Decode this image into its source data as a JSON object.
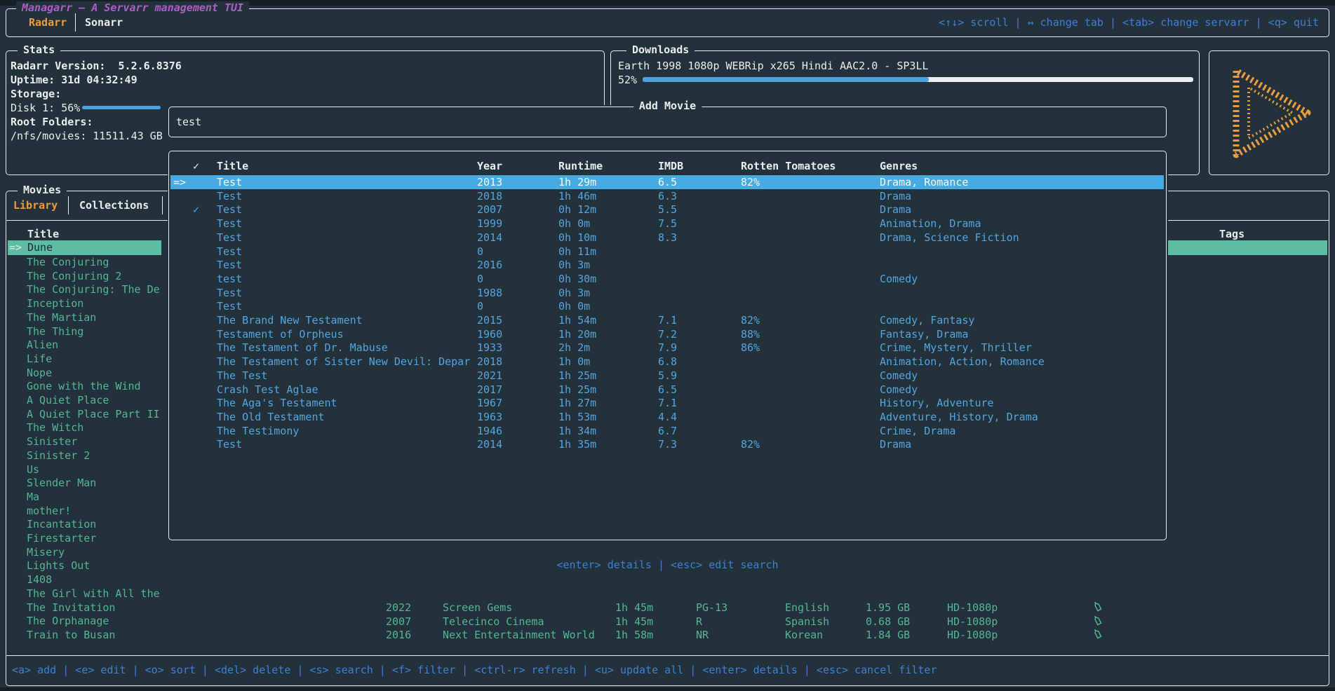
{
  "colors": {
    "background": "#22313a",
    "border": "#e9edf0",
    "text_white": "#e9edef",
    "title_purple": "#ab5fc6",
    "accent_orange": "#ed9b40",
    "help_blue": "#3f7fd6",
    "table_blue": "#55a5df",
    "selected_row_blue": "#47aae1",
    "list_teal": "#55b598",
    "selected_row_teal": "#5cbda3",
    "progress_blue": "#4aa3df"
  },
  "top_bar": {
    "title": "Managarr – A Servarr management TUI",
    "tabs": [
      {
        "label": "Radarr",
        "active": true
      },
      {
        "label": "Sonarr",
        "active": false
      }
    ],
    "help": "<↑↓> scroll | ↔ change tab | <tab> change servarr | <q> quit"
  },
  "stats": {
    "title": "Stats",
    "version_label": "Radarr Version:  5.2.6.8376",
    "uptime_label": "Uptime: 31d 04:32:49",
    "storage_label": "Storage:",
    "disk_label": "Disk 1: 56%",
    "disk_percent": 56,
    "root_folders_label": "Root Folders:",
    "root_folder_value": "/nfs/movies: 11511.43 GB"
  },
  "downloads": {
    "title": "Downloads",
    "item": "Earth 1998 1080p WEBRip x265 Hindi AAC2.0 - SP3LL",
    "percent_label": "52%",
    "percent": 52
  },
  "logo": {
    "name": "managarr-play-logo"
  },
  "movies_panel": {
    "title": "Movies",
    "tabs": [
      {
        "label": "Library",
        "active": true
      },
      {
        "label": "Collections",
        "active": false
      }
    ],
    "column_header": "Title",
    "selected_prefix": "=>",
    "selected_item": "Dune",
    "items": [
      "The Conjuring",
      "The Conjuring 2",
      "The Conjuring: The De",
      "Inception",
      "The Martian",
      "The Thing",
      "Alien",
      "Life",
      "Nope",
      "Gone with the Wind",
      "A Quiet Place",
      "A Quiet Place Part II",
      "The Witch",
      "Sinister",
      "Sinister 2",
      "Us",
      "Slender Man",
      "Ma",
      "mother!",
      "Incantation",
      "Firestarter",
      "Misery",
      "Lights Out",
      "1408",
      "The Girl with All the",
      "The Invitation",
      "The Orphanage",
      "Train to Busan"
    ]
  },
  "tags_panel": {
    "column_header": "Tags"
  },
  "background_rows": [
    {
      "year": "2022",
      "studio": "Screen Gems",
      "runtime": "1h 45m",
      "certification": "PG-13",
      "language": "English",
      "size": "1.95 GB",
      "quality": "HD-1080p"
    },
    {
      "year": "2007",
      "studio": "Telecinco Cinema",
      "runtime": "1h 45m",
      "certification": "R",
      "language": "Spanish",
      "size": "0.68 GB",
      "quality": "HD-1080p"
    },
    {
      "year": "2016",
      "studio": "Next Entertainment World",
      "runtime": "1h 58m",
      "certification": "NR",
      "language": "Korean",
      "size": "1.84 GB",
      "quality": "HD-1080p"
    }
  ],
  "add_movie_modal": {
    "title": "Add Movie",
    "search_value": "test",
    "help": "<enter> details | <esc> edit search",
    "table": {
      "check_glyph": "✓",
      "arrow_glyph": "=>",
      "headers": [
        "✓",
        "Title",
        "Year",
        "Runtime",
        "IMDB",
        "Rotten Tomatoes",
        "Genres"
      ],
      "rows": [
        {
          "selected": true,
          "checked": false,
          "title": "Test",
          "year": "2013",
          "runtime": "1h 29m",
          "imdb": "6.5",
          "rt": "82%",
          "genres": "Drama, Romance"
        },
        {
          "selected": false,
          "checked": false,
          "title": "Test",
          "year": "2018",
          "runtime": "1h 46m",
          "imdb": "6.3",
          "rt": "",
          "genres": "Drama"
        },
        {
          "selected": false,
          "checked": true,
          "title": "Test",
          "year": "2007",
          "runtime": "0h 12m",
          "imdb": "5.5",
          "rt": "",
          "genres": "Drama"
        },
        {
          "selected": false,
          "checked": false,
          "title": "Test",
          "year": "1999",
          "runtime": "0h 0m",
          "imdb": "7.5",
          "rt": "",
          "genres": "Animation, Drama"
        },
        {
          "selected": false,
          "checked": false,
          "title": "Test",
          "year": "2014",
          "runtime": "0h 10m",
          "imdb": "8.3",
          "rt": "",
          "genres": "Drama, Science Fiction"
        },
        {
          "selected": false,
          "checked": false,
          "title": "Test",
          "year": "0",
          "runtime": "0h 11m",
          "imdb": "",
          "rt": "",
          "genres": ""
        },
        {
          "selected": false,
          "checked": false,
          "title": "Test",
          "year": "2016",
          "runtime": "0h 3m",
          "imdb": "",
          "rt": "",
          "genres": ""
        },
        {
          "selected": false,
          "checked": false,
          "title": "test",
          "year": "0",
          "runtime": "0h 30m",
          "imdb": "",
          "rt": "",
          "genres": "Comedy"
        },
        {
          "selected": false,
          "checked": false,
          "title": "Test",
          "year": "1988",
          "runtime": "0h 3m",
          "imdb": "",
          "rt": "",
          "genres": ""
        },
        {
          "selected": false,
          "checked": false,
          "title": "Test",
          "year": "0",
          "runtime": "0h 0m",
          "imdb": "",
          "rt": "",
          "genres": ""
        },
        {
          "selected": false,
          "checked": false,
          "title": "The Brand New Testament",
          "year": "2015",
          "runtime": "1h 54m",
          "imdb": "7.1",
          "rt": "82%",
          "genres": "Comedy, Fantasy"
        },
        {
          "selected": false,
          "checked": false,
          "title": "Testament of Orpheus",
          "year": "1960",
          "runtime": "1h 20m",
          "imdb": "7.2",
          "rt": "88%",
          "genres": "Fantasy, Drama"
        },
        {
          "selected": false,
          "checked": false,
          "title": "The Testament of Dr. Mabuse",
          "year": "1933",
          "runtime": "2h 2m",
          "imdb": "7.9",
          "rt": "86%",
          "genres": "Crime, Mystery, Thriller"
        },
        {
          "selected": false,
          "checked": false,
          "title": "The Testament of Sister New Devil: Depar",
          "year": "2018",
          "runtime": "1h 0m",
          "imdb": "6.8",
          "rt": "",
          "genres": "Animation, Action, Romance"
        },
        {
          "selected": false,
          "checked": false,
          "title": "The Test",
          "year": "2021",
          "runtime": "1h 25m",
          "imdb": "5.9",
          "rt": "",
          "genres": "Comedy"
        },
        {
          "selected": false,
          "checked": false,
          "title": "Crash Test Aglae",
          "year": "2017",
          "runtime": "1h 25m",
          "imdb": "6.5",
          "rt": "",
          "genres": "Comedy"
        },
        {
          "selected": false,
          "checked": false,
          "title": "The Aga's Testament",
          "year": "1967",
          "runtime": "1h 27m",
          "imdb": "7.1",
          "rt": "",
          "genres": "History, Adventure"
        },
        {
          "selected": false,
          "checked": false,
          "title": "The Old Testament",
          "year": "1963",
          "runtime": "1h 53m",
          "imdb": "4.4",
          "rt": "",
          "genres": "Adventure, History, Drama"
        },
        {
          "selected": false,
          "checked": false,
          "title": "The Testimony",
          "year": "1946",
          "runtime": "1h 34m",
          "imdb": "6.7",
          "rt": "",
          "genres": "Crime, Drama"
        },
        {
          "selected": false,
          "checked": false,
          "title": "Test",
          "year": "2014",
          "runtime": "1h 35m",
          "imdb": "7.3",
          "rt": "82%",
          "genres": "Drama"
        }
      ]
    }
  },
  "bottom_bar": {
    "help": "<a> add | <e> edit | <o> sort | <del> delete | <s> search | <f> filter | <ctrl-r> refresh | <u> update all | <enter> details | <esc> cancel filter"
  }
}
